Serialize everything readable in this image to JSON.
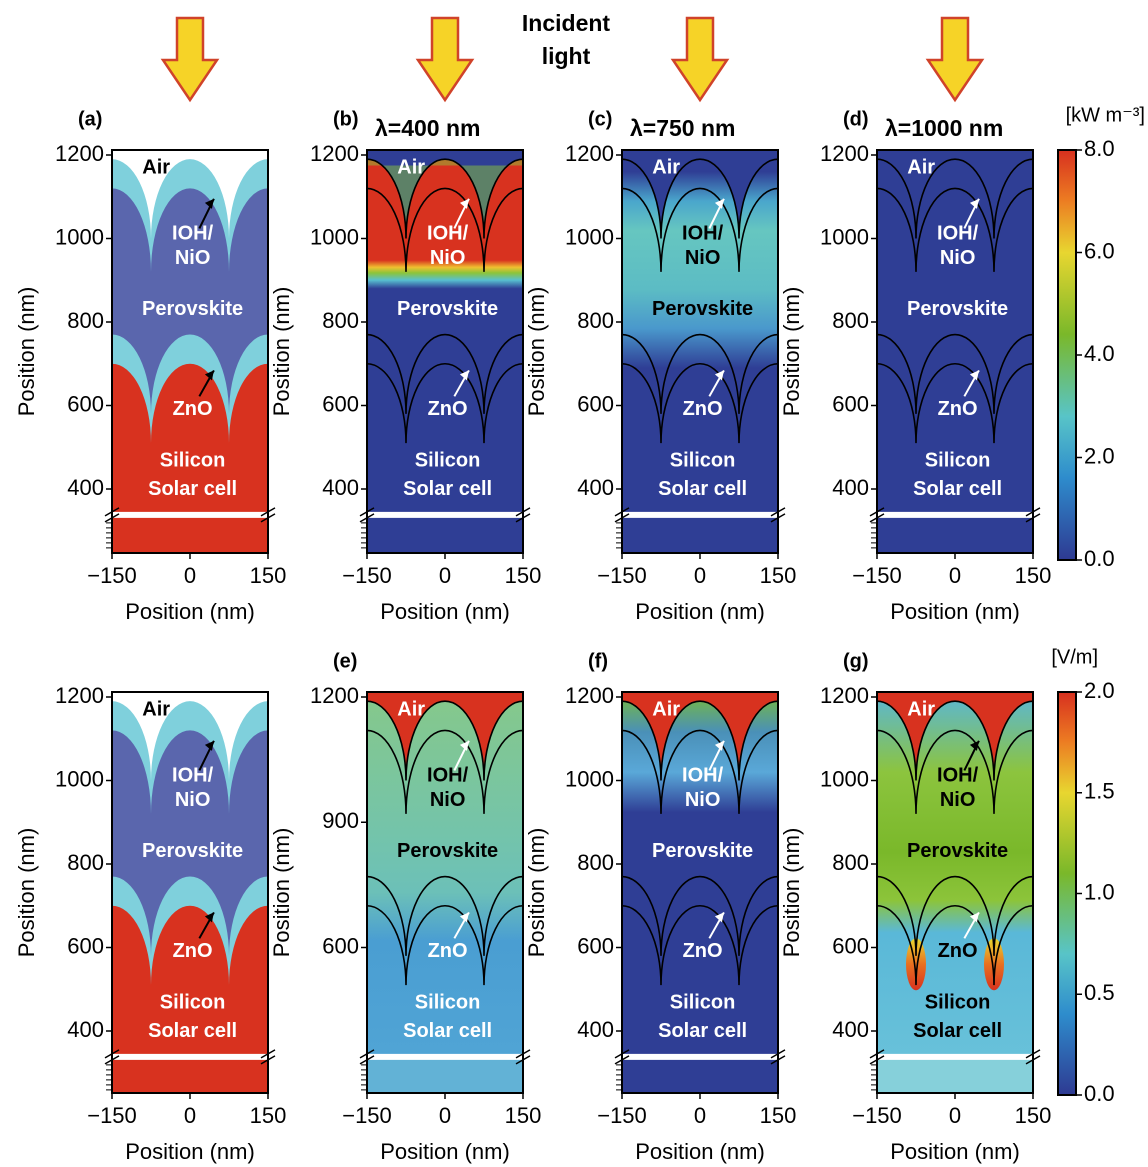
{
  "header": {
    "title_line1": "Incident",
    "title_line2": "light"
  },
  "axes": {
    "x_label": "Position (nm)",
    "y_label": "Position (nm)",
    "xticks": [
      "−150",
      "0",
      "150"
    ]
  },
  "regions": {
    "air": "Air",
    "ioh": "IOH/",
    "nio": "NiO",
    "perovskite": "Perovskite",
    "zno": "ZnO",
    "silicon": "Silicon",
    "solar_cell": "Solar cell"
  },
  "panels": [
    {
      "label": "(a)",
      "yticks": [
        "1200",
        "1000",
        "800",
        "600",
        "400"
      ]
    },
    {
      "label": "(b)",
      "title": "λ=400 nm",
      "yticks": [
        "1200",
        "1000",
        "800",
        "600",
        "400"
      ]
    },
    {
      "label": "(c)",
      "title": "λ=750 nm",
      "yticks": [
        "1200",
        "1000",
        "800",
        "600",
        "400"
      ]
    },
    {
      "label": "(d)",
      "title": "λ=1000 nm",
      "yticks": [
        "1200",
        "1000",
        "800",
        "600",
        "400"
      ]
    },
    {
      "yticks": [
        "1200",
        "1000",
        "800",
        "600",
        "400"
      ]
    },
    {
      "label": "(e)",
      "yticks": [
        "1200",
        "900",
        "600"
      ]
    },
    {
      "label": "(f)",
      "yticks": [
        "1200",
        "1000",
        "800",
        "600",
        "400"
      ]
    },
    {
      "label": "(g)",
      "yticks": [
        "1200",
        "1000",
        "800",
        "600",
        "400"
      ]
    }
  ],
  "colorbars": [
    {
      "unit": "[kW m⁻³]",
      "ticks": [
        "0.0",
        "2.0",
        "4.0",
        "6.0",
        "8.0"
      ]
    },
    {
      "unit": "[V/m]",
      "ticks": [
        "0.0",
        "0.5",
        "1.0",
        "1.5",
        "2.0"
      ]
    }
  ]
}
